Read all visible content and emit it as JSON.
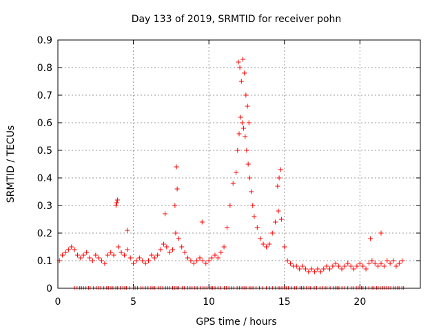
{
  "chart_data": {
    "type": "scatter",
    "title": "Day 133 of 2019, SRMTID for receiver pohn",
    "xlabel": "GPS time / hours",
    "ylabel": "SRMTID / TECUs",
    "xlim": [
      0,
      24
    ],
    "ylim": [
      0,
      0.9
    ],
    "xticks": [
      0,
      5,
      10,
      15,
      20
    ],
    "yticks": [
      0,
      0.1,
      0.2,
      0.3,
      0.4,
      0.5,
      0.6,
      0.7,
      0.8,
      0.9
    ],
    "grid": true,
    "marker": "+",
    "color": "#ff0000",
    "series": [
      {
        "name": "SRMTID",
        "x": [
          0.1,
          0.3,
          0.5,
          0.7,
          0.9,
          1.1,
          1.3,
          1.5,
          1.7,
          1.9,
          2.1,
          2.3,
          2.5,
          2.7,
          2.9,
          3.1,
          3.3,
          3.5,
          3.7,
          3.85,
          3.9,
          4.0,
          4.2,
          4.4,
          4.6,
          4.8,
          5.0,
          5.2,
          5.4,
          5.6,
          5.8,
          6.0,
          6.2,
          6.4,
          6.6,
          6.8,
          7.0,
          7.2,
          7.4,
          7.6,
          7.8,
          7.9,
          8.0,
          8.2,
          8.4,
          8.6,
          8.8,
          9.0,
          9.2,
          9.4,
          9.6,
          9.8,
          10.0,
          10.2,
          10.4,
          10.6,
          10.8,
          11.0,
          11.2,
          11.4,
          11.6,
          11.8,
          11.9,
          12.0,
          12.1,
          12.2,
          12.3,
          12.4,
          12.5,
          12.6,
          12.7,
          12.8,
          12.9,
          13.0,
          13.2,
          13.4,
          13.6,
          13.8,
          14.0,
          14.2,
          14.4,
          14.6,
          14.8,
          15.0,
          15.2,
          15.4,
          15.6,
          15.8,
          16.0,
          16.2,
          16.4,
          16.6,
          16.8,
          17.0,
          17.2,
          17.4,
          17.6,
          17.8,
          18.0,
          18.2,
          18.4,
          18.6,
          18.8,
          19.0,
          19.2,
          19.4,
          19.6,
          19.8,
          20.0,
          20.2,
          20.4,
          20.6,
          20.8,
          21.0,
          21.2,
          21.4,
          21.6,
          21.8,
          22.0,
          22.2,
          22.4,
          22.6,
          22.8,
          11.95,
          12.05,
          12.15,
          12.25,
          12.35,
          12.45,
          12.55,
          12.65,
          14.55,
          14.65,
          14.75,
          7.85,
          7.75,
          3.95,
          4.6,
          9.55,
          7.1,
          20.7,
          21.4
        ],
        "y": [
          0.1,
          0.12,
          0.13,
          0.14,
          0.15,
          0.14,
          0.12,
          0.11,
          0.12,
          0.13,
          0.11,
          0.1,
          0.12,
          0.11,
          0.1,
          0.09,
          0.12,
          0.13,
          0.12,
          0.3,
          0.31,
          0.15,
          0.13,
          0.12,
          0.14,
          0.11,
          0.09,
          0.1,
          0.11,
          0.1,
          0.09,
          0.1,
          0.12,
          0.11,
          0.12,
          0.14,
          0.16,
          0.15,
          0.13,
          0.14,
          0.2,
          0.36,
          0.18,
          0.15,
          0.13,
          0.11,
          0.1,
          0.09,
          0.1,
          0.11,
          0.1,
          0.09,
          0.1,
          0.11,
          0.12,
          0.11,
          0.13,
          0.15,
          0.22,
          0.3,
          0.38,
          0.42,
          0.5,
          0.56,
          0.62,
          0.6,
          0.58,
          0.55,
          0.5,
          0.45,
          0.4,
          0.35,
          0.3,
          0.26,
          0.22,
          0.18,
          0.16,
          0.15,
          0.16,
          0.2,
          0.24,
          0.28,
          0.25,
          0.15,
          0.1,
          0.09,
          0.08,
          0.08,
          0.07,
          0.08,
          0.07,
          0.06,
          0.07,
          0.06,
          0.07,
          0.06,
          0.07,
          0.08,
          0.07,
          0.08,
          0.09,
          0.08,
          0.07,
          0.08,
          0.09,
          0.08,
          0.07,
          0.08,
          0.09,
          0.08,
          0.07,
          0.09,
          0.1,
          0.09,
          0.08,
          0.09,
          0.08,
          0.1,
          0.09,
          0.1,
          0.08,
          0.09,
          0.1,
          0.82,
          0.8,
          0.75,
          0.83,
          0.78,
          0.7,
          0.66,
          0.6,
          0.37,
          0.4,
          0.43,
          0.44,
          0.3,
          0.32,
          0.21,
          0.24,
          0.27,
          0.18,
          0.2
        ]
      }
    ]
  }
}
